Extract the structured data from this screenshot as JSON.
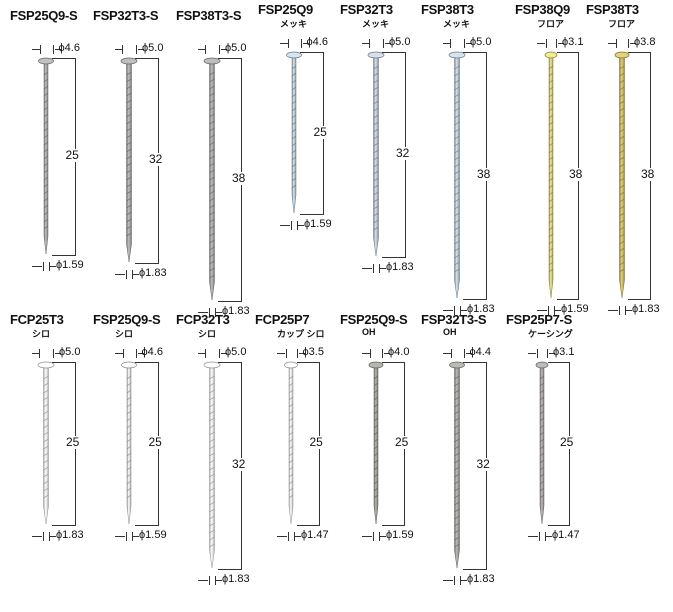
{
  "nails": [
    {
      "code": "FSP25Q9-S",
      "sub": "",
      "head": "ϕ4.6",
      "shank": "ϕ1.59",
      "length": "25",
      "color": "#a9aaa8"
    },
    {
      "code": "FSP32T3-S",
      "sub": "",
      "head": "ϕ5.0",
      "shank": "ϕ1.83",
      "length": "32",
      "color": "#a7a7a5"
    },
    {
      "code": "FSP38T3-S",
      "sub": "",
      "head": "ϕ5.0",
      "shank": "ϕ1.83",
      "length": "38",
      "color": "#a5a6a4"
    },
    {
      "code": "FSP25Q9",
      "sub": "メッキ",
      "head": "ϕ4.6",
      "shank": "ϕ1.59",
      "length": "25",
      "color": "#b8c7d3"
    },
    {
      "code": "FSP32T3",
      "sub": "メッキ",
      "head": "ϕ5.0",
      "shank": "ϕ1.83",
      "length": "32",
      "color": "#b9c4cd"
    },
    {
      "code": "FSP38T3",
      "sub": "メッキ",
      "head": "ϕ5.0",
      "shank": "ϕ1.83",
      "length": "38",
      "color": "#b8c6d2"
    },
    {
      "code": "FSP38Q9",
      "sub": "フロア",
      "head": "ϕ3.1",
      "shank": "ϕ1.59",
      "length": "38",
      "color": "#d4cf7a"
    },
    {
      "code": "FSP38T3",
      "sub": "フロア",
      "head": "ϕ3.8",
      "shank": "ϕ1.83",
      "length": "38",
      "color": "#c9b766"
    },
    {
      "code": "FCP25T3",
      "sub": "シロ",
      "head": "ϕ5.0",
      "shank": "ϕ1.83",
      "length": "25",
      "color": "#eef2f6"
    },
    {
      "code": "FSP25Q9-S",
      "sub": "シロ",
      "head": "ϕ4.6",
      "shank": "ϕ1.59",
      "length": "25",
      "color": "#dde4ea"
    },
    {
      "code": "FCP32T3",
      "sub": "シロ",
      "head": "ϕ5.0",
      "shank": "ϕ1.83",
      "length": "32",
      "color": "#f0f2f4"
    },
    {
      "code": "FCP25P7",
      "sub": "カップ シロ",
      "head": "ϕ3.5",
      "shank": "ϕ1.47",
      "length": "25",
      "color": "#eceef0"
    },
    {
      "code": "FSP25Q9-S",
      "sub": "OH",
      "head": "ϕ4.0",
      "shank": "ϕ1.59",
      "length": "25",
      "color": "#9e9e9b"
    },
    {
      "code": "FSP32T3-S",
      "sub": "OH",
      "head": "ϕ4.4",
      "shank": "ϕ1.83",
      "length": "32",
      "color": "#a3a3a0"
    },
    {
      "code": "FSP25P7-S",
      "sub": "ケーシング",
      "head": "ϕ3.1",
      "shank": "ϕ1.47",
      "length": "25",
      "color": "#a8a3a3"
    }
  ]
}
